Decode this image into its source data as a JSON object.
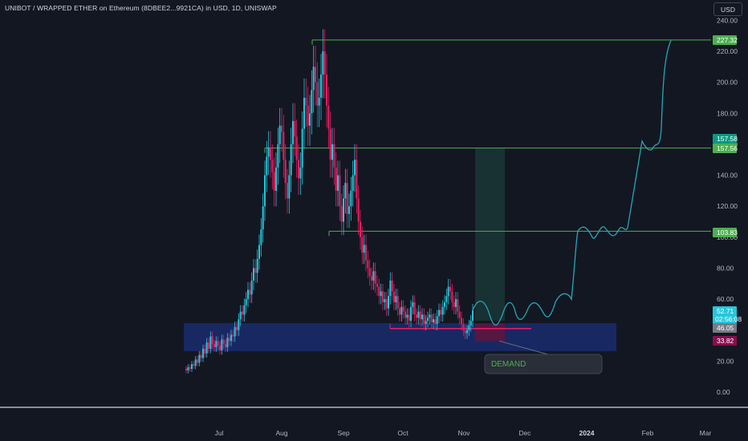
{
  "header": {
    "title": "UNIBOT / WRAPPED ETHER on Ethereum (8DBEE2...9921CA) in USD, 1D, UNISWAP",
    "currency_label": "USD"
  },
  "colors": {
    "background": "#131722",
    "up_candle": "#26c6da",
    "down_candle": "#e91e63",
    "level_line": "#4caf50",
    "demand_zone": "#1a2b6d",
    "projection": "#26a6b8",
    "support_line": "#e91e63"
  },
  "chart_data": {
    "type": "candlestick",
    "title": "UNIBOT / WRAPPED ETHER on Ethereum (8DBEE2...9921CA) in USD, 1D, UNISWAP",
    "y_axis": {
      "ticks": [
        "240.00",
        "220.00",
        "200.00",
        "180.00",
        "160.00",
        "140.00",
        "120.00",
        "100.00",
        "80.00",
        "60.00",
        "20.00",
        "0.00"
      ],
      "range": [
        -5,
        243
      ],
      "unit": "USD"
    },
    "x_axis": {
      "ticks": [
        "Jul",
        "Aug",
        "Sep",
        "Oct",
        "Nov",
        "Dec",
        "2024",
        "Feb",
        "Mar"
      ],
      "bold_ticks": [
        "2024"
      ]
    },
    "price_badges": [
      {
        "label": "227.32",
        "value": 227.32,
        "color": "#4caf50"
      },
      {
        "label": "157.58",
        "value": 157.58,
        "color": "#089981"
      },
      {
        "label": "157.56",
        "value": 157.56,
        "color": "#4caf50"
      },
      {
        "label": "103.83",
        "value": 103.83,
        "color": "#4caf50"
      },
      {
        "label": "52.71",
        "value": 52.71,
        "color": "#26c6da",
        "sublabel": "02:56:08"
      },
      {
        "label": "46.05",
        "value": 46.05,
        "color": "#787b86"
      },
      {
        "label": "33.82",
        "value": 33.82,
        "color": "#880e4f"
      }
    ],
    "target_levels": [
      227.32,
      157.56,
      103.83
    ],
    "demand_zone": {
      "label": "DEMAND",
      "price_low": 28,
      "price_high": 45
    },
    "support_level": 41,
    "series": [
      {
        "name": "UNIBOT",
        "closes": [
          14,
          16,
          15,
          18,
          17,
          21,
          19,
          24,
          22,
          28,
          25,
          32,
          28,
          36,
          31,
          29,
          33,
          30,
          27,
          34,
          31,
          29,
          35,
          33,
          37,
          36,
          42,
          40,
          47,
          52,
          50,
          56,
          60,
          66,
          63,
          72,
          80,
          77,
          86,
          95,
          105,
          120,
          140,
          152,
          158,
          150,
          142,
          130,
          145,
          160,
          172,
          168,
          150,
          135,
          125,
          140,
          160,
          175,
          165,
          150,
          138,
          145,
          170,
          190,
          185,
          172,
          180,
          195,
          210,
          200,
          185,
          190,
          205,
          220,
          205,
          185,
          170,
          150,
          160,
          145,
          130,
          140,
          120,
          110,
          125,
          135,
          115,
          120,
          130,
          140,
          150,
          125,
          110,
          100,
          90,
          95,
          85,
          80,
          75,
          72,
          78,
          70,
          68,
          62,
          65,
          58,
          60,
          54,
          62,
          72,
          65,
          58,
          62,
          54,
          50,
          55,
          52,
          48,
          50,
          46,
          55,
          58,
          50,
          48,
          52,
          47,
          50,
          44,
          46,
          48,
          50,
          45,
          47,
          44,
          49,
          53,
          50,
          55,
          58,
          62,
          68,
          65,
          58,
          55,
          60,
          52,
          48,
          44,
          40,
          38,
          40,
          43,
          46,
          52.71
        ],
        "opens": [
          15,
          14,
          16,
          15,
          18,
          17,
          21,
          19,
          24,
          22,
          28,
          25,
          32,
          28,
          36,
          31,
          29,
          33,
          30,
          27,
          34,
          31,
          29,
          35,
          33,
          37,
          36,
          42,
          40,
          47,
          52,
          50,
          56,
          60,
          66,
          63,
          72,
          80,
          77,
          86,
          95,
          105,
          120,
          140,
          152,
          158,
          150,
          142,
          130,
          145,
          160,
          172,
          168,
          150,
          135,
          125,
          140,
          160,
          175,
          165,
          150,
          138,
          145,
          170,
          190,
          185,
          172,
          180,
          195,
          210,
          200,
          185,
          190,
          205,
          220,
          205,
          185,
          170,
          150,
          160,
          145,
          130,
          140,
          120,
          110,
          125,
          135,
          115,
          120,
          130,
          140,
          150,
          125,
          110,
          100,
          90,
          95,
          85,
          80,
          75,
          72,
          78,
          70,
          68,
          62,
          65,
          58,
          60,
          54,
          62,
          72,
          65,
          58,
          62,
          54,
          50,
          55,
          52,
          48,
          50,
          46,
          55,
          58,
          50,
          48,
          52,
          47,
          50,
          44,
          46,
          48,
          50,
          45,
          47,
          44,
          49,
          53,
          50,
          55,
          58,
          62,
          68,
          65,
          58,
          55,
          60,
          52,
          48,
          44,
          40,
          38,
          40,
          43,
          46
        ]
      }
    ],
    "projection_path": [
      [
        52.7,
        "Nov"
      ],
      [
        60,
        "late Nov"
      ],
      [
        48,
        "late Nov"
      ],
      [
        55,
        "Dec"
      ],
      [
        48,
        "Dec"
      ],
      [
        62,
        "Dec"
      ],
      [
        104,
        "Jan"
      ],
      [
        104,
        "Jan"
      ],
      [
        157,
        "Feb"
      ],
      [
        157,
        "Feb"
      ],
      [
        227,
        "Feb"
      ]
    ]
  }
}
